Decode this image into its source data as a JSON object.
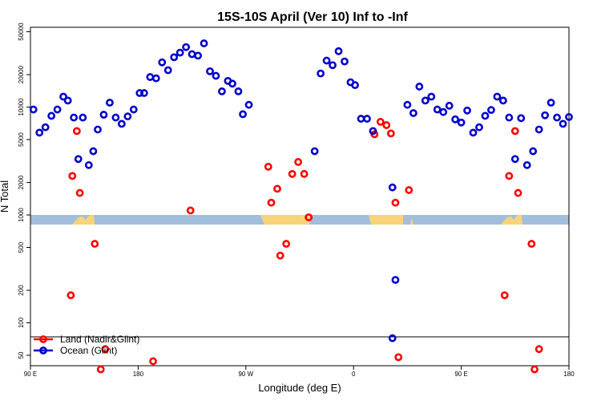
{
  "chart_data": {
    "type": "scatter",
    "title": "15S-10S April (Ver 10)   Inf to -Inf",
    "xlabel": "Longitude (deg E)",
    "ylabel": "N Total",
    "y_scale": "log",
    "xlim": [
      90,
      450
    ],
    "ylim": [
      40,
      55000
    ],
    "x_ticks": [
      {
        "value": 90,
        "label": "90 E"
      },
      {
        "value": 162,
        "label": "180"
      },
      {
        "value": 234,
        "label": "90 W"
      },
      {
        "value": 306,
        "label": "0"
      },
      {
        "value": 378,
        "label": "90 E"
      },
      {
        "value": 450,
        "label": "180"
      }
    ],
    "y_ticks": [
      {
        "value": 50,
        "label": "50"
      },
      {
        "value": 100,
        "label": "100"
      },
      {
        "value": 200,
        "label": "200"
      },
      {
        "value": 500,
        "label": "500"
      },
      {
        "value": 1000,
        "label": "1000"
      },
      {
        "value": 2000,
        "label": "2000"
      },
      {
        "value": 5000,
        "label": "5000"
      },
      {
        "value": 10000,
        "label": "10000"
      },
      {
        "value": 20000,
        "label": "20000"
      },
      {
        "value": 50000,
        "label": "50000"
      }
    ],
    "legend": {
      "position": "bottom-left"
    },
    "series": [
      {
        "name": "Land (Nadir&Glint)",
        "color": "#ff0000",
        "points": [
          [
            117,
            180
          ],
          [
            118,
            2300
          ],
          [
            121,
            6000
          ],
          [
            123,
            1600
          ],
          [
            133,
            540
          ],
          [
            137,
            37
          ],
          [
            140,
            57
          ],
          [
            172,
            44
          ],
          [
            197,
            1100
          ],
          [
            249,
            2800
          ],
          [
            251,
            1300
          ],
          [
            255,
            1750
          ],
          [
            257,
            420
          ],
          [
            261,
            540
          ],
          [
            265,
            2400
          ],
          [
            269,
            3100
          ],
          [
            273,
            2400
          ],
          [
            276,
            950
          ],
          [
            320,
            5600
          ],
          [
            324,
            7300
          ],
          [
            328,
            6800
          ],
          [
            331,
            5700
          ],
          [
            334,
            1300
          ],
          [
            336,
            48
          ],
          [
            343,
            1700
          ],
          [
            407,
            180
          ],
          [
            410,
            2300
          ],
          [
            414,
            6000
          ],
          [
            416,
            1600
          ],
          [
            425,
            540
          ],
          [
            427,
            37
          ],
          [
            430,
            57
          ]
        ]
      },
      {
        "name": "Ocean (Glint)",
        "color": "#0000cc",
        "points": [
          [
            92,
            9500
          ],
          [
            96,
            5800
          ],
          [
            100,
            6500
          ],
          [
            104,
            8300
          ],
          [
            108,
            9500
          ],
          [
            112,
            12500
          ],
          [
            115,
            11500
          ],
          [
            119,
            8000
          ],
          [
            122,
            3300
          ],
          [
            125,
            8000
          ],
          [
            129,
            2900
          ],
          [
            132,
            3900
          ],
          [
            135,
            6200
          ],
          [
            139,
            8500
          ],
          [
            143,
            11000
          ],
          [
            147,
            8000
          ],
          [
            151,
            7000
          ],
          [
            155,
            8200
          ],
          [
            159,
            9500
          ],
          [
            163,
            13500
          ],
          [
            166,
            13500
          ],
          [
            170,
            19000
          ],
          [
            174,
            18500
          ],
          [
            178,
            26000
          ],
          [
            182,
            22000
          ],
          [
            186,
            29000
          ],
          [
            190,
            32000
          ],
          [
            194,
            36000
          ],
          [
            198,
            31000
          ],
          [
            202,
            30000
          ],
          [
            206,
            39000
          ],
          [
            210,
            21500
          ],
          [
            214,
            19500
          ],
          [
            218,
            14000
          ],
          [
            222,
            17500
          ],
          [
            225,
            16500
          ],
          [
            229,
            14000
          ],
          [
            232,
            8600
          ],
          [
            236,
            10500
          ],
          [
            280,
            3900
          ],
          [
            284,
            20500
          ],
          [
            288,
            27000
          ],
          [
            292,
            24500
          ],
          [
            296,
            33000
          ],
          [
            300,
            26500
          ],
          [
            304,
            17000
          ],
          [
            307,
            16000
          ],
          [
            311,
            7800
          ],
          [
            315,
            7800
          ],
          [
            319,
            6000
          ],
          [
            332,
            1800
          ],
          [
            334,
            250
          ],
          [
            332,
            72
          ],
          [
            342,
            10500
          ],
          [
            346,
            8800
          ],
          [
            350,
            15500
          ],
          [
            354,
            11500
          ],
          [
            358,
            12500
          ],
          [
            362,
            9500
          ],
          [
            366,
            9000
          ],
          [
            370,
            10300
          ],
          [
            374,
            7700
          ],
          [
            378,
            7200
          ],
          [
            382,
            9300
          ],
          [
            386,
            5800
          ],
          [
            390,
            6500
          ],
          [
            394,
            8300
          ],
          [
            398,
            9400
          ],
          [
            402,
            12500
          ],
          [
            406,
            11500
          ],
          [
            410,
            8000
          ],
          [
            414,
            3300
          ],
          [
            418,
            7900
          ],
          [
            422,
            2900
          ],
          [
            426,
            3900
          ],
          [
            430,
            6200
          ],
          [
            434,
            8400
          ],
          [
            438,
            11000
          ],
          [
            442,
            8000
          ],
          [
            446,
            7000
          ],
          [
            450,
            8100
          ]
        ]
      }
    ]
  }
}
